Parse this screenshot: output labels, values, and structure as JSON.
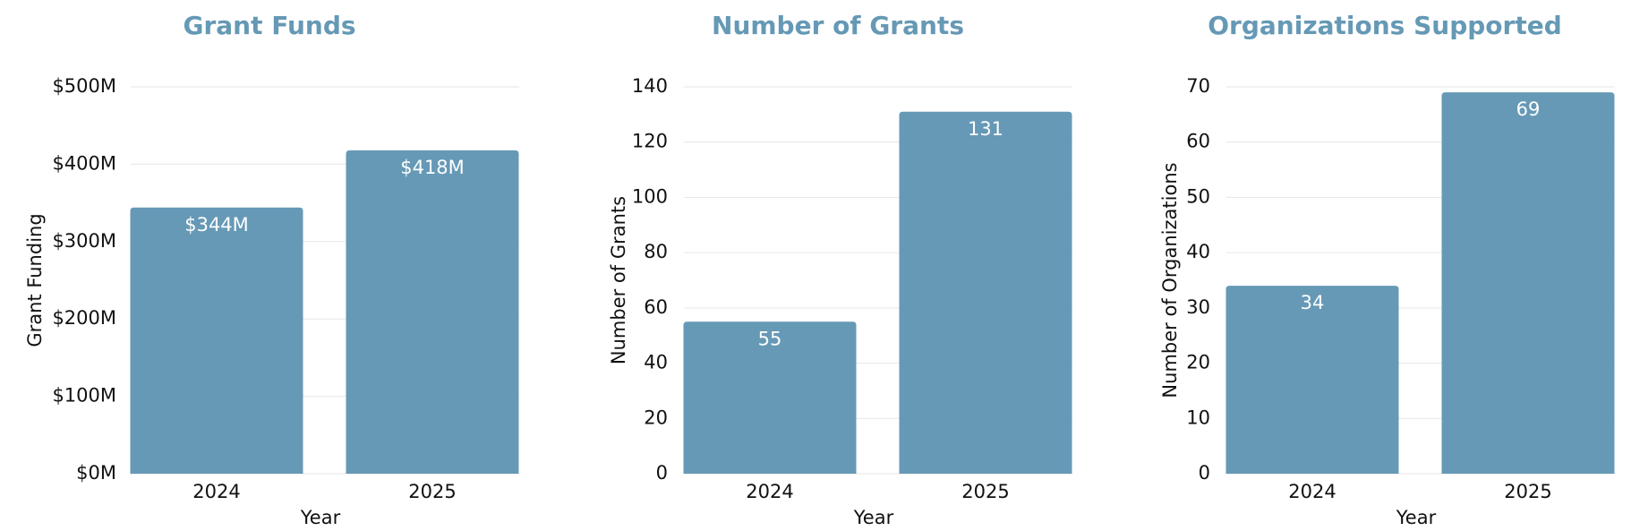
{
  "colors": {
    "bar": "#6699b6",
    "title": "#6599b5",
    "grid": "#e6e6e6",
    "text": "#111111",
    "bar_label": "#ffffff"
  },
  "chart_data": [
    {
      "type": "bar",
      "title": "Grant Funds",
      "xlabel": "Year",
      "ylabel": "Grant Funding",
      "categories": [
        "2024",
        "2025"
      ],
      "values": [
        344,
        418
      ],
      "data_labels": [
        "$344M",
        "$418M"
      ],
      "ylim": [
        0,
        500
      ],
      "yticks": [
        0,
        100,
        200,
        300,
        400,
        500
      ],
      "ytick_labels": [
        "$0M",
        "$100M",
        "$200M",
        "$300M",
        "$400M",
        "$500M"
      ],
      "grid": true
    },
    {
      "type": "bar",
      "title": "Number of Grants",
      "xlabel": "Year",
      "ylabel": "Number of Grants",
      "categories": [
        "2024",
        "2025"
      ],
      "values": [
        55,
        131
      ],
      "data_labels": [
        "55",
        "131"
      ],
      "ylim": [
        0,
        140
      ],
      "yticks": [
        0,
        20,
        40,
        60,
        80,
        100,
        120,
        140
      ],
      "ytick_labels": [
        "0",
        "20",
        "40",
        "60",
        "80",
        "100",
        "120",
        "140"
      ],
      "grid": true
    },
    {
      "type": "bar",
      "title": "Organizations Supported",
      "xlabel": "Year",
      "ylabel": "Number of Organizations",
      "categories": [
        "2024",
        "2025"
      ],
      "values": [
        34,
        69
      ],
      "data_labels": [
        "34",
        "69"
      ],
      "ylim": [
        0,
        70
      ],
      "yticks": [
        0,
        10,
        20,
        30,
        40,
        50,
        60,
        70
      ],
      "ytick_labels": [
        "0",
        "10",
        "20",
        "30",
        "40",
        "50",
        "60",
        "70"
      ],
      "grid": true
    }
  ]
}
